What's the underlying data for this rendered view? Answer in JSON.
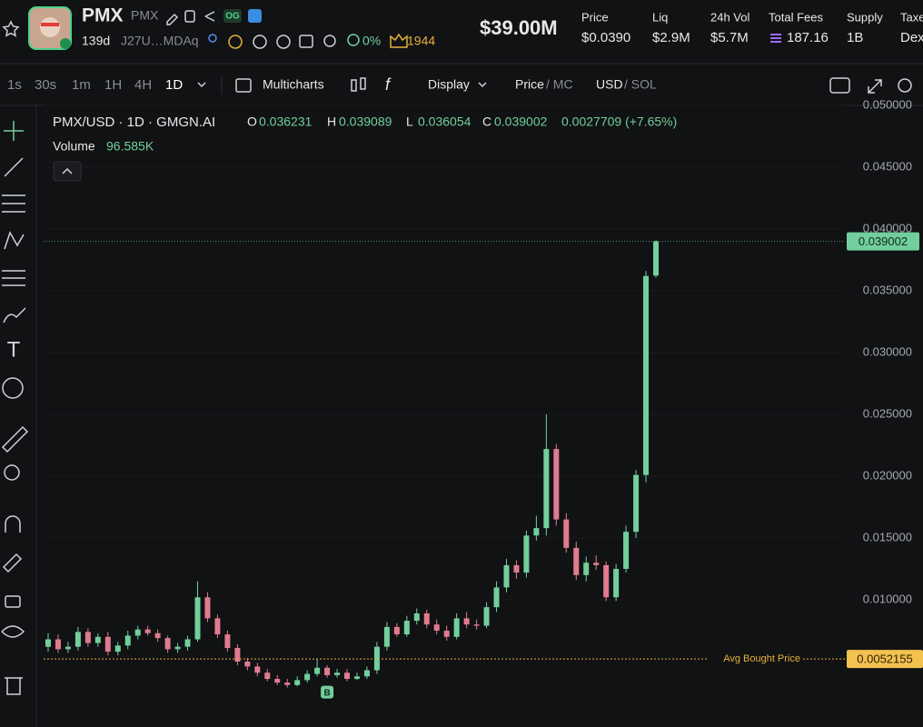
{
  "header": {
    "name": "PMX",
    "symbol": "PMX",
    "badge": "OG",
    "age": "139d",
    "address": "J27U…MDAq",
    "holders_pct": "0%",
    "count": "1944",
    "market_cap": "$39.00M",
    "stats": [
      {
        "label": "Price",
        "value": "$0.0390"
      },
      {
        "label": "Liq",
        "value": "$2.9M"
      },
      {
        "label": "24h Vol",
        "value": "$5.7M"
      },
      {
        "label": "Total Fees",
        "value": "187.16"
      },
      {
        "label": "Supply",
        "value": "1B"
      },
      {
        "label": "Taxe",
        "value": "Dex"
      }
    ]
  },
  "toolbar": {
    "intervals": [
      "1s",
      "30s",
      "1m",
      "1H",
      "4H",
      "1D"
    ],
    "multicharts": "Multicharts",
    "display": "Display",
    "price": "Price",
    "mc": "/ MC",
    "usd": "USD",
    "sol": "/ SOL"
  },
  "chart_data": {
    "type": "candlestick",
    "title": "PMX/USD · 1D · GMGN.AI",
    "legend_labels": {
      "o": "O",
      "h": "H",
      "l": "L",
      "c": "C"
    },
    "change": "0.0027709 (+7.65%)",
    "volume_label": "Volume",
    "volume": "96.585K",
    "open": [
      0.0062,
      0.0068,
      0.006,
      0.0062,
      0.0074,
      0.0065,
      0.007,
      0.0058,
      0.0063,
      0.0071,
      0.0076,
      0.0073,
      0.0069,
      0.006,
      0.0062,
      0.0068,
      0.0102,
      0.0085,
      0.0072,
      0.0061,
      0.005,
      0.0046,
      0.0041,
      0.0036,
      0.0033,
      0.0031,
      0.0035,
      0.004,
      0.0045,
      0.0039,
      0.0041,
      0.0036,
      0.0038,
      0.0043,
      0.0062,
      0.0078,
      0.0072,
      0.0083,
      0.0089,
      0.008,
      0.0075,
      0.007,
      0.0085,
      0.008,
      0.0079,
      0.0094,
      0.011,
      0.0128,
      0.0122,
      0.0152,
      0.0158,
      0.0222,
      0.0165,
      0.0142,
      0.012,
      0.013,
      0.0128,
      0.0102,
      0.0125,
      0.0155,
      0.0201,
      0.036231
    ],
    "high": [
      0.0073,
      0.0072,
      0.0066,
      0.0078,
      0.0077,
      0.0073,
      0.0074,
      0.0066,
      0.0075,
      0.0079,
      0.0079,
      0.0076,
      0.0071,
      0.0065,
      0.0071,
      0.0115,
      0.0106,
      0.0088,
      0.0075,
      0.0064,
      0.0053,
      0.0049,
      0.0044,
      0.0039,
      0.0036,
      0.0038,
      0.0043,
      0.0052,
      0.0047,
      0.0044,
      0.0044,
      0.0041,
      0.0046,
      0.0066,
      0.0082,
      0.0081,
      0.0087,
      0.0093,
      0.0092,
      0.0084,
      0.0079,
      0.0089,
      0.009,
      0.0084,
      0.0098,
      0.0115,
      0.0133,
      0.0132,
      0.0156,
      0.0168,
      0.025,
      0.0226,
      0.017,
      0.0147,
      0.0135,
      0.0136,
      0.0131,
      0.0129,
      0.016,
      0.0205,
      0.0366,
      0.039089
    ],
    "low": [
      0.0058,
      0.0057,
      0.0057,
      0.0059,
      0.0062,
      0.0062,
      0.0055,
      0.0055,
      0.006,
      0.0068,
      0.0071,
      0.0066,
      0.0057,
      0.0057,
      0.0059,
      0.0066,
      0.0082,
      0.0069,
      0.0058,
      0.0047,
      0.0043,
      0.0038,
      0.0034,
      0.0031,
      0.0029,
      0.003,
      0.0033,
      0.0038,
      0.0037,
      0.0037,
      0.0034,
      0.0035,
      0.0036,
      0.004,
      0.0059,
      0.007,
      0.007,
      0.008,
      0.0077,
      0.0072,
      0.0067,
      0.0068,
      0.0077,
      0.0076,
      0.0077,
      0.009,
      0.0106,
      0.0117,
      0.0118,
      0.0148,
      0.0152,
      0.016,
      0.0138,
      0.0116,
      0.0115,
      0.0124,
      0.0099,
      0.0099,
      0.0122,
      0.015,
      0.0195,
      0.036054
    ],
    "close": [
      0.0068,
      0.006,
      0.0062,
      0.0074,
      0.0065,
      0.007,
      0.0058,
      0.0063,
      0.0071,
      0.0076,
      0.0073,
      0.0069,
      0.006,
      0.0062,
      0.0068,
      0.0102,
      0.0085,
      0.0072,
      0.0061,
      0.005,
      0.0046,
      0.0041,
      0.0036,
      0.0033,
      0.0031,
      0.0035,
      0.004,
      0.0045,
      0.0039,
      0.0041,
      0.0036,
      0.0038,
      0.0043,
      0.0062,
      0.0078,
      0.0072,
      0.0083,
      0.0089,
      0.008,
      0.0075,
      0.007,
      0.0085,
      0.008,
      0.0079,
      0.0094,
      0.011,
      0.0128,
      0.0122,
      0.0152,
      0.0158,
      0.0222,
      0.0165,
      0.0142,
      0.012,
      0.013,
      0.0128,
      0.0102,
      0.0125,
      0.0155,
      0.0201,
      0.0362,
      0.039002
    ],
    "ylim": [
      0,
      0.05
    ],
    "yticks": [
      {
        "value": 0.01,
        "label": "0.010000"
      },
      {
        "value": 0.015,
        "label": "0.015000"
      },
      {
        "value": 0.02,
        "label": "0.020000"
      },
      {
        "value": 0.025,
        "label": "0.025000"
      },
      {
        "value": 0.03,
        "label": "0.030000"
      },
      {
        "value": 0.035,
        "label": "0.035000"
      },
      {
        "value": 0.04,
        "label": "0.040000"
      },
      {
        "value": 0.045,
        "label": "0.045000"
      },
      {
        "value": 0.05,
        "label": "0.050000"
      }
    ],
    "grid": true,
    "up_color": "#72cf9c",
    "down_color": "#e07b8f",
    "avg_price": 0.0052155,
    "avg_label": "Avg Bought Price",
    "marker": "B"
  }
}
